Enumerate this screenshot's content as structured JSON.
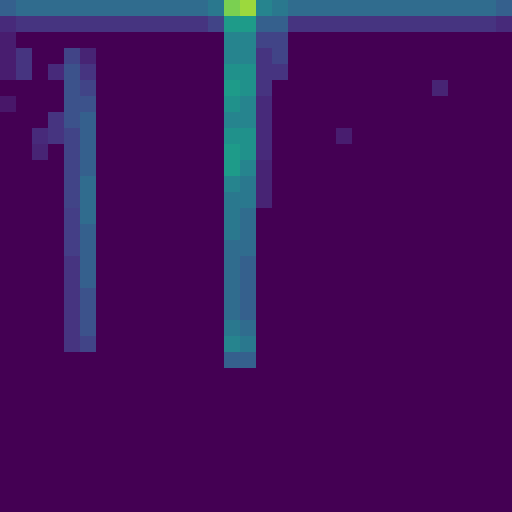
{
  "chart_data": {
    "type": "heatmap",
    "color": "viridis",
    "zlim": [
      0,
      1
    ],
    "tick_labels": false,
    "cells": [
      [
        0.3,
        0.35,
        0.35,
        0.35,
        0.35,
        0.35,
        0.35,
        0.35,
        0.35,
        0.35,
        0.35,
        0.35,
        0.35,
        0.4,
        0.8,
        0.85,
        0.45,
        0.4,
        0.35,
        0.35,
        0.35,
        0.35,
        0.35,
        0.35,
        0.35,
        0.35,
        0.35,
        0.35,
        0.35,
        0.35,
        0.35,
        0.3
      ],
      [
        0.12,
        0.15,
        0.15,
        0.15,
        0.15,
        0.15,
        0.15,
        0.15,
        0.15,
        0.15,
        0.15,
        0.15,
        0.15,
        0.2,
        0.55,
        0.55,
        0.3,
        0.3,
        0.15,
        0.15,
        0.15,
        0.15,
        0.15,
        0.15,
        0.15,
        0.15,
        0.15,
        0.15,
        0.15,
        0.15,
        0.15,
        0.12
      ],
      [
        0.08,
        0,
        0,
        0,
        0,
        0,
        0,
        0,
        0,
        0,
        0,
        0,
        0,
        0,
        0.45,
        0.45,
        0.2,
        0.2,
        0,
        0,
        0,
        0,
        0,
        0,
        0,
        0,
        0,
        0,
        0,
        0,
        0,
        0
      ],
      [
        0.08,
        0.15,
        0,
        0,
        0.2,
        0.1,
        0,
        0,
        0,
        0,
        0,
        0,
        0,
        0,
        0.45,
        0.45,
        0.15,
        0.2,
        0,
        0,
        0,
        0,
        0,
        0,
        0,
        0,
        0,
        0,
        0,
        0,
        0,
        0
      ],
      [
        0.08,
        0.15,
        0,
        0.12,
        0.25,
        0.15,
        0,
        0,
        0,
        0,
        0,
        0,
        0,
        0,
        0.5,
        0.5,
        0.15,
        0.15,
        0,
        0,
        0,
        0,
        0,
        0,
        0,
        0,
        0,
        0,
        0,
        0,
        0,
        0
      ],
      [
        0,
        0,
        0,
        0,
        0.25,
        0.2,
        0,
        0,
        0,
        0,
        0,
        0,
        0,
        0,
        0.55,
        0.5,
        0.15,
        0,
        0,
        0,
        0,
        0,
        0,
        0,
        0,
        0,
        0,
        0.1,
        0,
        0,
        0,
        0
      ],
      [
        0.06,
        0,
        0,
        0,
        0.25,
        0.25,
        0,
        0,
        0,
        0,
        0,
        0,
        0,
        0,
        0.5,
        0.45,
        0.12,
        0,
        0,
        0,
        0,
        0,
        0,
        0,
        0,
        0,
        0,
        0,
        0,
        0,
        0,
        0
      ],
      [
        0,
        0,
        0,
        0.15,
        0.25,
        0.3,
        0,
        0,
        0,
        0,
        0,
        0,
        0,
        0,
        0.45,
        0.45,
        0.12,
        0,
        0,
        0,
        0,
        0,
        0,
        0,
        0,
        0,
        0,
        0,
        0,
        0,
        0,
        0
      ],
      [
        0,
        0,
        0.12,
        0.15,
        0.2,
        0.3,
        0,
        0,
        0,
        0,
        0,
        0,
        0,
        0,
        0.5,
        0.5,
        0.12,
        0,
        0,
        0,
        0,
        0.08,
        0,
        0,
        0,
        0,
        0,
        0,
        0,
        0,
        0,
        0
      ],
      [
        0,
        0,
        0.1,
        0,
        0.2,
        0.3,
        0,
        0,
        0,
        0,
        0,
        0,
        0,
        0,
        0.55,
        0.5,
        0.12,
        0,
        0,
        0,
        0,
        0,
        0,
        0,
        0,
        0,
        0,
        0,
        0,
        0,
        0,
        0
      ],
      [
        0,
        0,
        0,
        0,
        0.2,
        0.3,
        0,
        0,
        0,
        0,
        0,
        0,
        0,
        0,
        0.55,
        0.45,
        0.1,
        0,
        0,
        0,
        0,
        0,
        0,
        0,
        0,
        0,
        0,
        0,
        0,
        0,
        0,
        0
      ],
      [
        0,
        0,
        0,
        0,
        0.2,
        0.35,
        0,
        0,
        0,
        0,
        0,
        0,
        0,
        0,
        0.45,
        0.4,
        0.1,
        0,
        0,
        0,
        0,
        0,
        0,
        0,
        0,
        0,
        0,
        0,
        0,
        0,
        0,
        0
      ],
      [
        0,
        0,
        0,
        0,
        0.2,
        0.35,
        0,
        0,
        0,
        0,
        0,
        0,
        0,
        0,
        0.4,
        0.4,
        0.1,
        0,
        0,
        0,
        0,
        0,
        0,
        0,
        0,
        0,
        0,
        0,
        0,
        0,
        0,
        0
      ],
      [
        0,
        0,
        0,
        0,
        0.18,
        0.35,
        0,
        0,
        0,
        0,
        0,
        0,
        0,
        0,
        0.4,
        0.35,
        0,
        0,
        0,
        0,
        0,
        0,
        0,
        0,
        0,
        0,
        0,
        0,
        0,
        0,
        0,
        0
      ],
      [
        0,
        0,
        0,
        0,
        0.18,
        0.3,
        0,
        0,
        0,
        0,
        0,
        0,
        0,
        0,
        0.4,
        0.35,
        0,
        0,
        0,
        0,
        0,
        0,
        0,
        0,
        0,
        0,
        0,
        0,
        0,
        0,
        0,
        0
      ],
      [
        0,
        0,
        0,
        0,
        0.18,
        0.3,
        0,
        0,
        0,
        0,
        0,
        0,
        0,
        0,
        0.35,
        0.35,
        0,
        0,
        0,
        0,
        0,
        0,
        0,
        0,
        0,
        0,
        0,
        0,
        0,
        0,
        0,
        0
      ],
      [
        0,
        0,
        0,
        0,
        0.15,
        0.3,
        0,
        0,
        0,
        0,
        0,
        0,
        0,
        0,
        0.35,
        0.3,
        0,
        0,
        0,
        0,
        0,
        0,
        0,
        0,
        0,
        0,
        0,
        0,
        0,
        0,
        0,
        0
      ],
      [
        0,
        0,
        0,
        0,
        0.15,
        0.3,
        0,
        0,
        0,
        0,
        0,
        0,
        0,
        0,
        0.35,
        0.3,
        0,
        0,
        0,
        0,
        0,
        0,
        0,
        0,
        0,
        0,
        0,
        0,
        0,
        0,
        0,
        0
      ],
      [
        0,
        0,
        0,
        0,
        0.15,
        0.25,
        0,
        0,
        0,
        0,
        0,
        0,
        0,
        0,
        0.35,
        0.3,
        0,
        0,
        0,
        0,
        0,
        0,
        0,
        0,
        0,
        0,
        0,
        0,
        0,
        0,
        0,
        0
      ],
      [
        0,
        0,
        0,
        0,
        0.15,
        0.25,
        0,
        0,
        0,
        0,
        0,
        0,
        0,
        0,
        0.35,
        0.3,
        0,
        0,
        0,
        0,
        0,
        0,
        0,
        0,
        0,
        0,
        0,
        0,
        0,
        0,
        0,
        0
      ],
      [
        0,
        0,
        0,
        0,
        0.15,
        0.25,
        0,
        0,
        0,
        0,
        0,
        0,
        0,
        0,
        0.4,
        0.35,
        0,
        0,
        0,
        0,
        0,
        0,
        0,
        0,
        0,
        0,
        0,
        0,
        0,
        0,
        0,
        0
      ],
      [
        0,
        0,
        0,
        0,
        0.15,
        0.2,
        0,
        0,
        0,
        0,
        0,
        0,
        0,
        0,
        0.45,
        0.4,
        0,
        0,
        0,
        0,
        0,
        0,
        0,
        0,
        0,
        0,
        0,
        0,
        0,
        0,
        0,
        0
      ],
      [
        0,
        0,
        0,
        0,
        0,
        0,
        0,
        0,
        0,
        0,
        0,
        0,
        0,
        0,
        0.3,
        0.3,
        0,
        0,
        0,
        0,
        0,
        0,
        0,
        0,
        0,
        0,
        0,
        0,
        0,
        0,
        0,
        0
      ],
      [
        0,
        0,
        0,
        0,
        0,
        0,
        0,
        0,
        0,
        0,
        0,
        0,
        0,
        0,
        0,
        0,
        0,
        0,
        0,
        0,
        0,
        0,
        0,
        0,
        0,
        0,
        0,
        0,
        0,
        0,
        0,
        0
      ],
      [
        0,
        0,
        0,
        0,
        0,
        0,
        0,
        0,
        0,
        0,
        0,
        0,
        0,
        0,
        0,
        0,
        0,
        0,
        0,
        0,
        0,
        0,
        0,
        0,
        0,
        0,
        0,
        0,
        0,
        0,
        0,
        0
      ],
      [
        0,
        0,
        0,
        0,
        0,
        0,
        0,
        0,
        0,
        0,
        0,
        0,
        0,
        0,
        0,
        0,
        0,
        0,
        0,
        0,
        0,
        0,
        0,
        0,
        0,
        0,
        0,
        0,
        0,
        0,
        0,
        0
      ],
      [
        0,
        0,
        0,
        0,
        0,
        0,
        0,
        0,
        0,
        0,
        0,
        0,
        0,
        0,
        0,
        0,
        0,
        0,
        0,
        0,
        0,
        0,
        0,
        0,
        0,
        0,
        0,
        0,
        0,
        0,
        0,
        0
      ],
      [
        0,
        0,
        0,
        0,
        0,
        0,
        0,
        0,
        0,
        0,
        0,
        0,
        0,
        0,
        0,
        0,
        0,
        0,
        0,
        0,
        0,
        0,
        0,
        0,
        0,
        0,
        0,
        0,
        0,
        0,
        0,
        0
      ],
      [
        0,
        0,
        0,
        0,
        0,
        0,
        0,
        0,
        0,
        0,
        0,
        0,
        0,
        0,
        0,
        0,
        0,
        0,
        0,
        0,
        0,
        0,
        0,
        0,
        0,
        0,
        0,
        0,
        0,
        0,
        0,
        0
      ],
      [
        0,
        0,
        0,
        0,
        0,
        0,
        0,
        0,
        0,
        0,
        0,
        0,
        0,
        0,
        0,
        0,
        0,
        0,
        0,
        0,
        0,
        0,
        0,
        0,
        0,
        0,
        0,
        0,
        0,
        0,
        0,
        0
      ],
      [
        0,
        0,
        0,
        0,
        0,
        0,
        0,
        0,
        0,
        0,
        0,
        0,
        0,
        0,
        0,
        0,
        0,
        0,
        0,
        0,
        0,
        0,
        0,
        0,
        0,
        0,
        0,
        0,
        0,
        0,
        0,
        0
      ],
      [
        0,
        0,
        0,
        0,
        0,
        0,
        0,
        0,
        0,
        0,
        0,
        0,
        0,
        0,
        0,
        0,
        0,
        0,
        0,
        0,
        0,
        0,
        0,
        0,
        0,
        0,
        0,
        0,
        0,
        0,
        0,
        0
      ]
    ]
  }
}
